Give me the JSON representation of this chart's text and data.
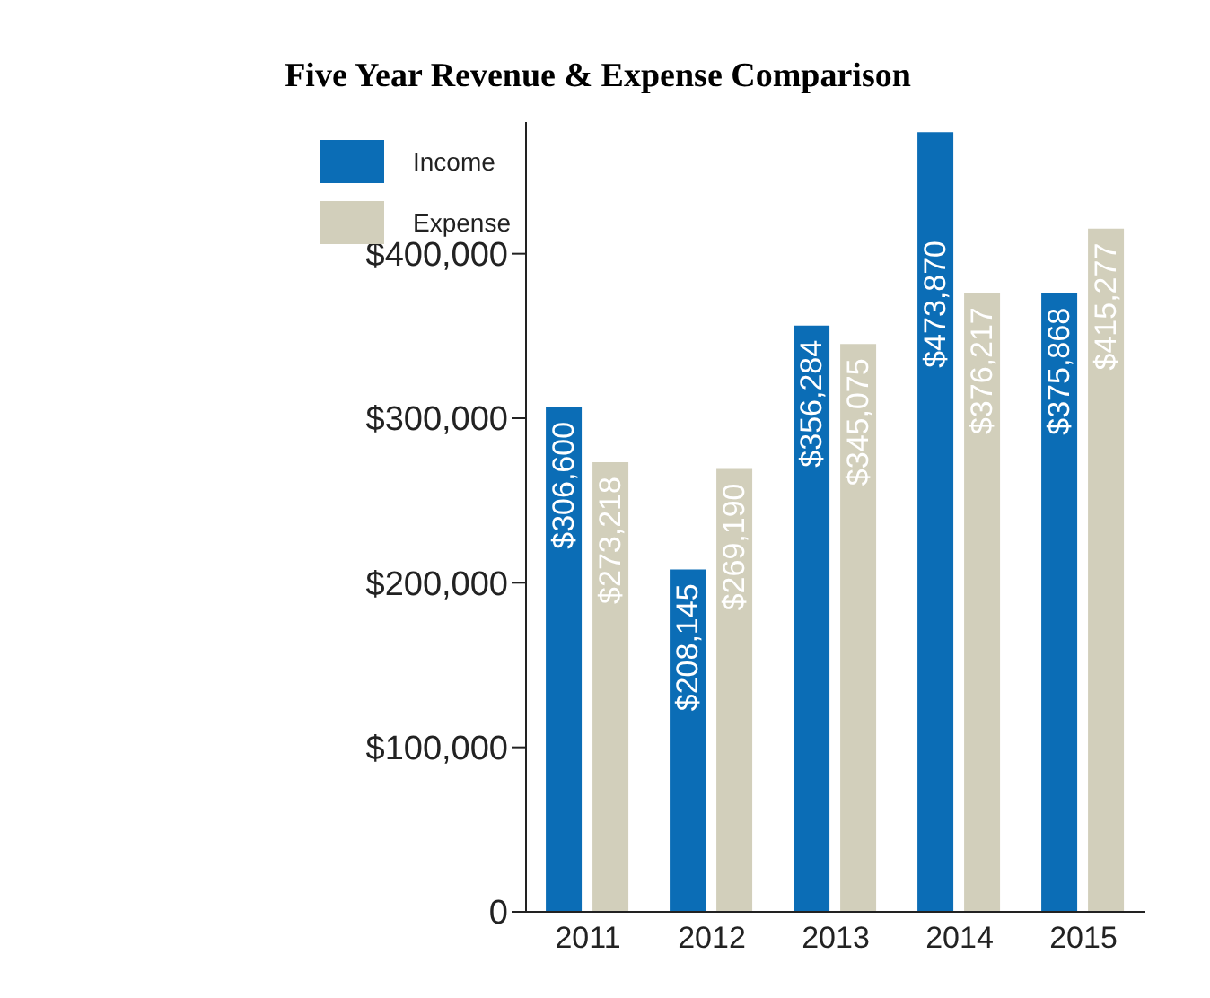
{
  "chart_data": {
    "type": "bar",
    "title": "Five Year Revenue & Expense Comparison",
    "categories": [
      "2011",
      "2012",
      "2013",
      "2014",
      "2015"
    ],
    "series": [
      {
        "name": "Income",
        "color": "#0b6db6",
        "values": [
          306600,
          208145,
          356284,
          473870,
          375868
        ],
        "value_labels": [
          "$306,600",
          "$208,145",
          "$356,284",
          "$473,870",
          "$375,868"
        ]
      },
      {
        "name": "Expense",
        "color": "#d2cfbb",
        "values": [
          273218,
          269190,
          345075,
          376217,
          415277
        ],
        "value_labels": [
          "$273,218",
          "$269,190",
          "$345,075",
          "$376,217",
          "$415,277"
        ]
      }
    ],
    "ylim": [
      0,
      480000
    ],
    "yticks": [
      0,
      {
        "value": 100000,
        "label": "$100,000"
      },
      {
        "value": 200000,
        "label": "$200,000"
      },
      {
        "value": 300000,
        "label": "$300,000"
      },
      {
        "value": 400000,
        "label": "$400,000"
      }
    ],
    "grid": false,
    "legend": "top left"
  }
}
